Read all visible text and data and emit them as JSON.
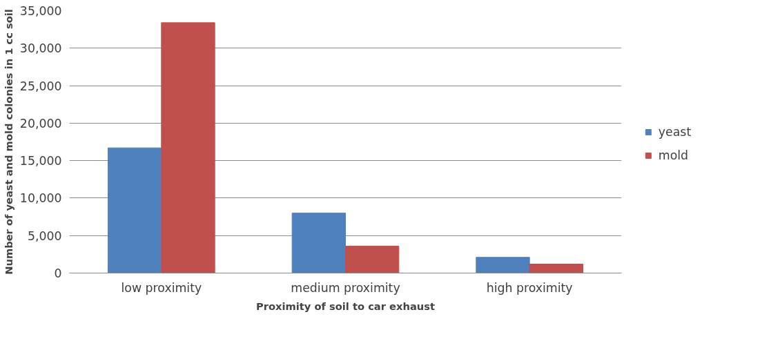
{
  "chart_data": {
    "type": "bar",
    "xlabel": "Proximity of soil to car exhaust",
    "ylabel": "Number of yeast and mold colonies in 1 cc soil",
    "categories": [
      "low proximity",
      "medium proximity",
      "high proximity"
    ],
    "series": [
      {
        "name": "yeast",
        "color": "#4f81bd",
        "values": [
          16700,
          8000,
          2100
        ]
      },
      {
        "name": "mold",
        "color": "#c0504d",
        "values": [
          33400,
          3600,
          1200
        ]
      }
    ],
    "ylim": [
      0,
      35000
    ],
    "yticks": [
      {
        "value": 0,
        "label": "0"
      },
      {
        "value": 5000,
        "label": "5,000"
      },
      {
        "value": 10000,
        "label": "10,000"
      },
      {
        "value": 15000,
        "label": "15,000"
      },
      {
        "value": 20000,
        "label": "20,000"
      },
      {
        "value": 25000,
        "label": "25,000"
      },
      {
        "value": 30000,
        "label": "30,000"
      },
      {
        "value": 35000,
        "label": "35,000"
      }
    ],
    "grid": "y",
    "legend": "right"
  }
}
